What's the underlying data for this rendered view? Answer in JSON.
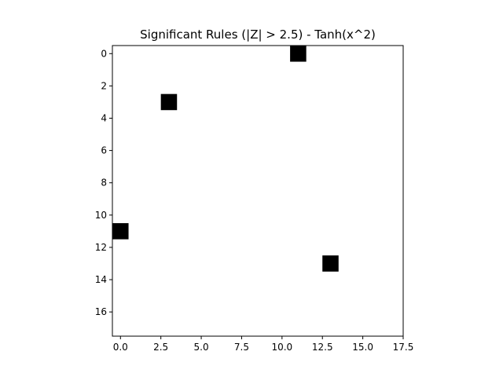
{
  "chart_data": {
    "type": "heatmap",
    "title": "Significant Rules (|Z| > 2.5) - Tanh(x^2)",
    "xlabel": "",
    "ylabel": "",
    "grid_size": [
      18,
      18
    ],
    "xlim": [
      -0.5,
      17.5
    ],
    "ylim": [
      17.5,
      -0.5
    ],
    "y_inverted": true,
    "grid": false,
    "legend": "none",
    "x_ticks": [
      0.0,
      2.5,
      5.0,
      7.5,
      10.0,
      12.5,
      15.0,
      17.5
    ],
    "x_tick_labels": [
      "0.0",
      "2.5",
      "5.0",
      "7.5",
      "10.0",
      "12.5",
      "15.0",
      "17.5"
    ],
    "y_ticks": [
      0,
      2,
      4,
      6,
      8,
      10,
      12,
      14,
      16
    ],
    "y_tick_labels": [
      "0",
      "2",
      "4",
      "6",
      "8",
      "10",
      "12",
      "14",
      "16"
    ],
    "colormap": [
      "#ffffff",
      "#000000"
    ],
    "value_range": [
      0,
      1
    ],
    "significant_cells": [
      {
        "row": 0,
        "col": 11,
        "value": 1
      },
      {
        "row": 3,
        "col": 3,
        "value": 1
      },
      {
        "row": 11,
        "col": 0,
        "value": 1
      },
      {
        "row": 13,
        "col": 13,
        "value": 1
      }
    ]
  }
}
